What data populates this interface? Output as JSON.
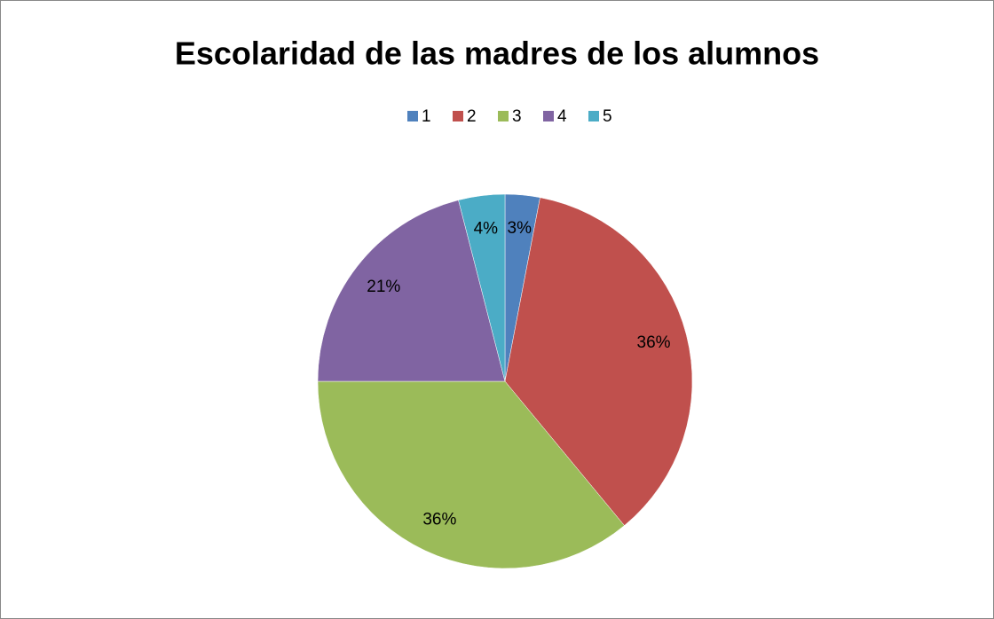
{
  "chart_data": {
    "type": "pie",
    "title": "Escolaridad de las madres de los alumnos",
    "categories": [
      "1",
      "2",
      "3",
      "4",
      "5"
    ],
    "values": [
      3,
      36,
      36,
      21,
      4
    ],
    "value_labels": [
      "3%",
      "36%",
      "36%",
      "21%",
      "4%"
    ],
    "colors": [
      "#4f81bd",
      "#c0504d",
      "#9bbb59",
      "#8064a2",
      "#4bacc6"
    ],
    "legend": "top"
  }
}
